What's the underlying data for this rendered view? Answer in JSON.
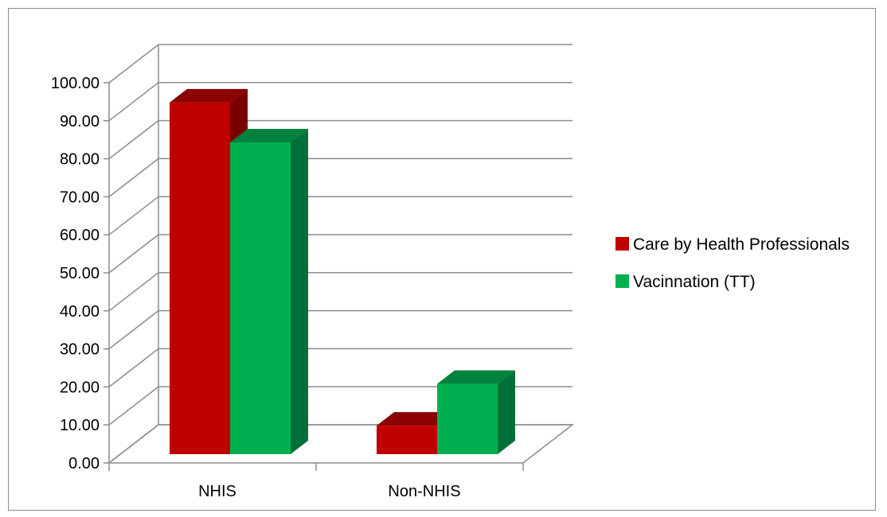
{
  "chart_data": {
    "type": "bar",
    "categories": [
      "NHIS",
      "Non-NHIS"
    ],
    "series": [
      {
        "name": "Care by Health Professionals",
        "values": [
          92.5,
          7.5
        ]
      },
      {
        "name": "Vacinnation (TT)",
        "values": [
          82.0,
          18.5
        ]
      }
    ],
    "ylim": [
      0,
      100
    ],
    "yticks": [
      "0.00",
      "10.00",
      "20.00",
      "30.00",
      "40.00",
      "50.00",
      "60.00",
      "70.00",
      "80.00",
      "90.00",
      "100.00"
    ],
    "legend_position": "right",
    "grid": true,
    "colors": {
      "Care by Health Professionals": {
        "front": "#c00000",
        "side": "#7a0000",
        "top": "#8b0000"
      },
      "Vacinnation (TT)": {
        "front": "#00b050",
        "side": "#00703a",
        "top": "#00833f"
      },
      "grid": "#8c8c8c"
    }
  }
}
